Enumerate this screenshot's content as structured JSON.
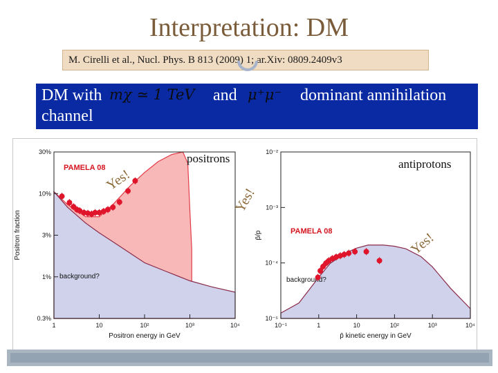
{
  "slide": {
    "title": "Interpretation: DM",
    "reference": "M. Cirelli et al., Nucl. Phys. B 813 (2009) 1; ar.Xiv: 0809.2409v3",
    "banner": {
      "prefix": "DM with",
      "mass_formula": "mχ ≃ 1 TeV",
      "middle": "and",
      "channel_formula": "μ⁺μ⁻",
      "suffix": "dominant annihilation",
      "line2": "channel"
    },
    "annotations": {
      "positrons_label": "positrons",
      "antiprotons_label": "antiprotons",
      "yes_1": "Yes!",
      "yes_2": "Yes!",
      "yes_3": "Yes!"
    }
  },
  "chart_data": [
    {
      "type": "line",
      "log_x": true,
      "log_y": true,
      "xlabel": "Positron energy in GeV",
      "ylabel": "Positron fraction",
      "xlim": [
        1,
        10000
      ],
      "ylim": [
        0.003,
        0.3
      ],
      "x_ticks": [
        "1",
        "10",
        "10²",
        "10³",
        "10⁴"
      ],
      "y_ticks": [
        "0.3%",
        "1%",
        "3%",
        "10%",
        "30%"
      ],
      "legend_text": "PAMELA 08",
      "background_label": "background?",
      "series": [
        {
          "name": "PAMELA 08",
          "kind": "points",
          "color": "#e0142a",
          "x": [
            1.5,
            2.2,
            2.7,
            3.2,
            3.7,
            4.6,
            5.6,
            6.8,
            8.1,
            10.0,
            12.5,
            15.5,
            20,
            28,
            43,
            62
          ],
          "y": [
            0.088,
            0.074,
            0.066,
            0.061,
            0.059,
            0.056,
            0.055,
            0.054,
            0.056,
            0.056,
            0.058,
            0.061,
            0.065,
            0.075,
            0.102,
            0.135
          ]
        },
        {
          "name": "",
          "kind": "dm_plus_background",
          "color": "#f9b8b8",
          "x": [
            1,
            2,
            5,
            10,
            20,
            50,
            100,
            200,
            400,
            700,
            900,
            1000,
            1100
          ],
          "y": [
            0.1,
            0.07,
            0.05,
            0.05,
            0.07,
            0.12,
            0.17,
            0.23,
            0.28,
            0.3,
            0.22,
            0.06,
            0.02
          ]
        },
        {
          "name": "",
          "kind": "background",
          "color": "#cfd2ea",
          "x": [
            1,
            2,
            5,
            10,
            20,
            50,
            100,
            300,
            1000,
            3000,
            10000
          ],
          "y": [
            0.1,
            0.065,
            0.042,
            0.032,
            0.025,
            0.018,
            0.014,
            0.011,
            0.0085,
            0.0072,
            0.0062
          ]
        }
      ]
    },
    {
      "type": "line",
      "log_x": true,
      "log_y": true,
      "xlabel": "p̄ kinetic energy in GeV",
      "ylabel": "p̄/p",
      "xlim": [
        0.1,
        10000
      ],
      "ylim": [
        1e-05,
        0.01
      ],
      "x_ticks": [
        "10⁻¹",
        "1",
        "10",
        "10²",
        "10³",
        "10⁴"
      ],
      "y_ticks": [
        "10⁻⁵",
        "10⁻⁴",
        "10⁻³",
        "10⁻²"
      ],
      "legend_text": "PAMELA 08",
      "background_label": "background?",
      "series": [
        {
          "name": "PAMELA 08",
          "kind": "points",
          "color": "#e0142a",
          "x": [
            0.95,
            1.1,
            1.3,
            1.55,
            1.85,
            2.3,
            2.9,
            3.7,
            4.7,
            6.2,
            9.0,
            18,
            40
          ],
          "y": [
            5.5e-05,
            7.2e-05,
            8.6e-05,
            9.9e-05,
            0.00011,
            0.00012,
            0.000128,
            0.000135,
            0.000142,
            0.00015,
            0.00016,
            0.00016,
            0.00011
          ]
        },
        {
          "name": "",
          "kind": "background",
          "color": "#cfd2ea",
          "x": [
            0.1,
            0.3,
            0.6,
            1,
            2,
            5,
            10,
            20,
            50,
            100,
            200,
            500,
            1000,
            3000,
            10000
          ],
          "y": [
            1.25e-05,
            1.9e-05,
            3.5e-05,
            5.5e-05,
            9.8e-05,
            0.00015,
            0.000185,
            0.00021,
            0.00021,
            0.0002,
            0.00018,
            0.00013,
            8.5e-05,
            3.5e-05,
            1.5e-05
          ]
        }
      ]
    }
  ]
}
